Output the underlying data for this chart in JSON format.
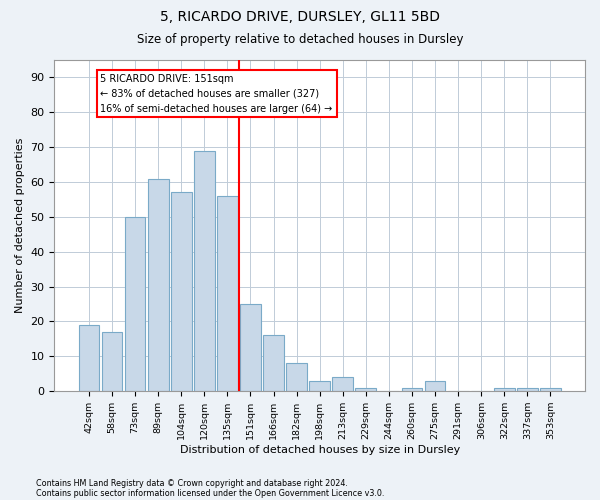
{
  "title1": "5, RICARDO DRIVE, DURSLEY, GL11 5BD",
  "title2": "Size of property relative to detached houses in Dursley",
  "xlabel": "Distribution of detached houses by size in Dursley",
  "ylabel": "Number of detached properties",
  "categories": [
    "42sqm",
    "58sqm",
    "73sqm",
    "89sqm",
    "104sqm",
    "120sqm",
    "135sqm",
    "151sqm",
    "166sqm",
    "182sqm",
    "198sqm",
    "213sqm",
    "229sqm",
    "244sqm",
    "260sqm",
    "275sqm",
    "291sqm",
    "306sqm",
    "322sqm",
    "337sqm",
    "353sqm"
  ],
  "values": [
    19,
    17,
    50,
    61,
    57,
    69,
    56,
    25,
    16,
    8,
    3,
    4,
    1,
    0,
    1,
    3,
    0,
    0,
    1,
    1,
    1
  ],
  "bar_color": "#c8d8e8",
  "bar_edge_color": "#7aaac8",
  "marker_bar_index": 7,
  "ylim": [
    0,
    95
  ],
  "yticks": [
    0,
    10,
    20,
    30,
    40,
    50,
    60,
    70,
    80,
    90
  ],
  "annotation_line1": "5 RICARDO DRIVE: 151sqm",
  "annotation_line2": "← 83% of detached houses are smaller (327)",
  "annotation_line3": "16% of semi-detached houses are larger (64) →",
  "footer1": "Contains HM Land Registry data © Crown copyright and database right 2024.",
  "footer2": "Contains public sector information licensed under the Open Government Licence v3.0.",
  "bg_color": "#edf2f7",
  "plot_bg_color": "#ffffff",
  "grid_color": "#c0ccd8"
}
